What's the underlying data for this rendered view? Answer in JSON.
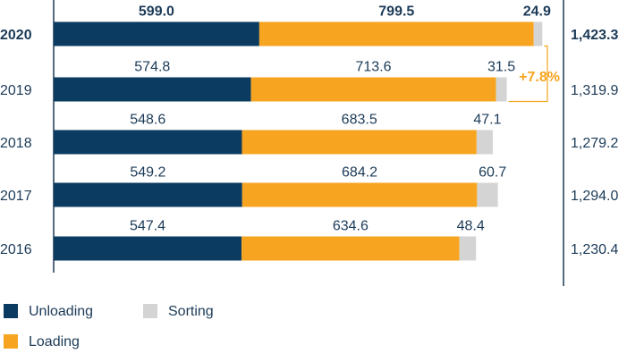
{
  "chart_data": {
    "type": "stacked-bar-horizontal",
    "categories": [
      "2020",
      "2019",
      "2018",
      "2017",
      "2016"
    ],
    "series": [
      {
        "name": "Unloading",
        "color": "#0b3b60",
        "values": [
          599.0,
          574.8,
          548.6,
          549.2,
          547.4
        ],
        "value_labels": [
          "599.0",
          "574.8",
          "548.6",
          "549.2",
          "547.4"
        ]
      },
      {
        "name": "Loading",
        "color": "#f7a521",
        "values": [
          799.5,
          713.6,
          683.5,
          684.2,
          634.6
        ],
        "value_labels": [
          "799.5",
          "713.6",
          "683.5",
          "684.2",
          "634.6"
        ]
      },
      {
        "name": "Sorting",
        "color": "#d4d4d4",
        "values": [
          24.9,
          31.5,
          47.1,
          60.7,
          48.4
        ],
        "value_labels": [
          "24.9",
          "31.5",
          "47.1",
          "60.7",
          "48.4"
        ]
      }
    ],
    "totals": {
      "values": [
        1423.3,
        1319.9,
        1279.2,
        1294.0,
        1230.4
      ],
      "value_labels": [
        "1,423.3",
        "1,319.9",
        "1,279.2",
        "1,294.0",
        "1,230.4"
      ]
    },
    "annotation": "+7.8%",
    "annotation_color": "#f7a521",
    "xlim": [
      0,
      1480
    ]
  }
}
